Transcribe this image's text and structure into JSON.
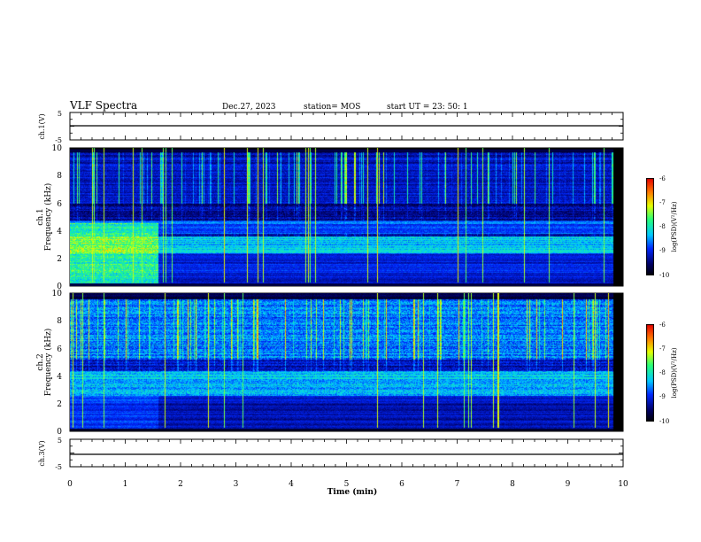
{
  "header": {
    "title": "VLF Spectra",
    "date": "Dec.27, 2023",
    "station": "station= MOS",
    "start": "start  UT =   23: 50: 1"
  },
  "panels": {
    "ch1v": {
      "label": "ch.1(V)",
      "ticks": [
        "5",
        "-5"
      ]
    },
    "ch1": {
      "label_ch": "ch.1",
      "label_freq": "Frequency (kHz)",
      "yticks": [
        "0",
        "2",
        "4",
        "6",
        "8",
        "10"
      ]
    },
    "ch2": {
      "label_ch": "ch.2",
      "label_freq": "Frequency (kHz)",
      "yticks": [
        "0",
        "2",
        "4",
        "6",
        "8",
        "10"
      ]
    },
    "ch3v": {
      "label": "ch.3(V)",
      "ticks": [
        "5",
        "-5"
      ]
    }
  },
  "colorbar": {
    "label": "log(PSD)(V²/Hz)",
    "ticks": [
      "-6",
      "-7",
      "-8",
      "-9",
      "-10"
    ]
  },
  "xaxis": {
    "label": "Time  (min)",
    "ticks": [
      "0",
      "1",
      "2",
      "3",
      "4",
      "5",
      "6",
      "7",
      "8",
      "9",
      "10"
    ]
  },
  "chart_data": {
    "type": "heatmap",
    "title": "VLF Spectra",
    "xlabel": "Time  (min)",
    "xlim": [
      0,
      10
    ],
    "data_end_min": 9.82,
    "panels": [
      {
        "name": "ch.1(V)",
        "kind": "waveform",
        "ylim": [
          -5,
          5
        ],
        "level": 0
      },
      {
        "name": "ch.1",
        "kind": "spectrogram",
        "ylabel": "Frequency (kHz)",
        "ylim": [
          0,
          10
        ],
        "color_scale": "log(PSD)(V²/Hz)",
        "clim": [
          -10,
          -6
        ],
        "features": {
          "broadband_0_to_4p5_kHz_until_min": 1.6,
          "sferic_band_kHz": [
            6,
            10
          ],
          "band_near_3kHz": true
        }
      },
      {
        "name": "ch.2",
        "kind": "spectrogram",
        "ylabel": "Frequency (kHz)",
        "ylim": [
          0,
          10
        ],
        "color_scale": "log(PSD)(V²/Hz)",
        "clim": [
          -10,
          -6
        ],
        "features": {
          "sferic_band_kHz": [
            5,
            9.5
          ],
          "band_near_3_to_4kHz": true
        }
      },
      {
        "name": "ch.3(V)",
        "kind": "waveform",
        "ylim": [
          -5,
          5
        ],
        "level": 0
      }
    ]
  }
}
